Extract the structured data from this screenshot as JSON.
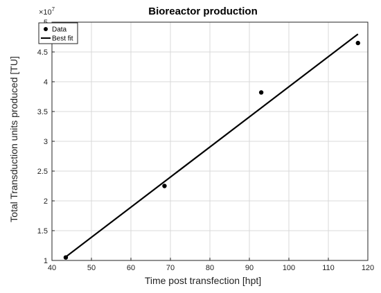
{
  "chart_data": {
    "type": "scatter",
    "title": "Bioreactor production",
    "xlabel": "Time post transfection [hpt]",
    "ylabel": "Total Transduction units produced [TU]",
    "y_exponent_label": "×10",
    "y_exponent": "7",
    "xlim": [
      40,
      120
    ],
    "ylim": [
      1,
      5
    ],
    "y_scale": 10000000,
    "x_ticks": [
      40,
      50,
      60,
      70,
      80,
      90,
      100,
      110,
      120
    ],
    "y_ticks": [
      1,
      1.5,
      2,
      2.5,
      3,
      3.5,
      4,
      4.5,
      5
    ],
    "x_tick_labels": [
      "40",
      "50",
      "60",
      "70",
      "80",
      "90",
      "100",
      "110",
      "120"
    ],
    "y_tick_labels": [
      "1",
      "1.5",
      "2",
      "2.5",
      "3",
      "3.5",
      "4",
      "4.5",
      "5"
    ],
    "grid": true,
    "legend_position": "top-left",
    "series": [
      {
        "name": "Data",
        "style": "markers",
        "color": "#000000",
        "x": [
          43.5,
          68.5,
          93,
          117.5
        ],
        "y": [
          1.05,
          2.25,
          3.82,
          4.65
        ]
      },
      {
        "name": "Best fit",
        "style": "line",
        "color": "#000000",
        "x": [
          43.5,
          117.5
        ],
        "y": [
          1.06,
          4.8
        ]
      }
    ]
  }
}
